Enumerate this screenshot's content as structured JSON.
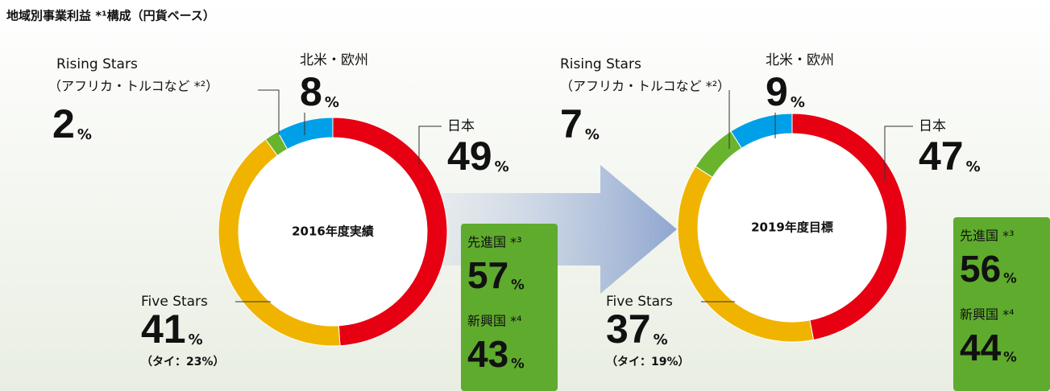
{
  "title": "地域別事業利益 *¹構成（円貨ベース）",
  "chart_data": [
    {
      "type": "donut",
      "title": "2016年度実績",
      "categories": [
        "日本",
        "Five Stars",
        "Rising Stars",
        "北米・欧州"
      ],
      "values": [
        49,
        41,
        2,
        8
      ],
      "colors": [
        "#e60012",
        "#f0b400",
        "#6ab42d",
        "#00a0e9"
      ],
      "unit": "%",
      "notes": {
        "Rising Stars": "（アフリカ・トルコなど *²）",
        "Five Stars": "（タイ：23%）"
      },
      "split": [
        {
          "name": "先進国 *³",
          "value": 57
        },
        {
          "name": "新興国 *⁴",
          "value": 43
        }
      ]
    },
    {
      "type": "donut",
      "title": "2019年度目標",
      "categories": [
        "日本",
        "Five Stars",
        "Rising Stars",
        "北米・欧州"
      ],
      "values": [
        47,
        37,
        7,
        9
      ],
      "colors": [
        "#e60012",
        "#f0b400",
        "#6ab42d",
        "#00a0e9"
      ],
      "unit": "%",
      "notes": {
        "Rising Stars": "（アフリカ・トルコなど *²）",
        "Five Stars": "（タイ：19%）"
      },
      "split": [
        {
          "name": "先進国 *³",
          "value": 56
        },
        {
          "name": "新興国 *⁴",
          "value": 44
        }
      ]
    }
  ]
}
